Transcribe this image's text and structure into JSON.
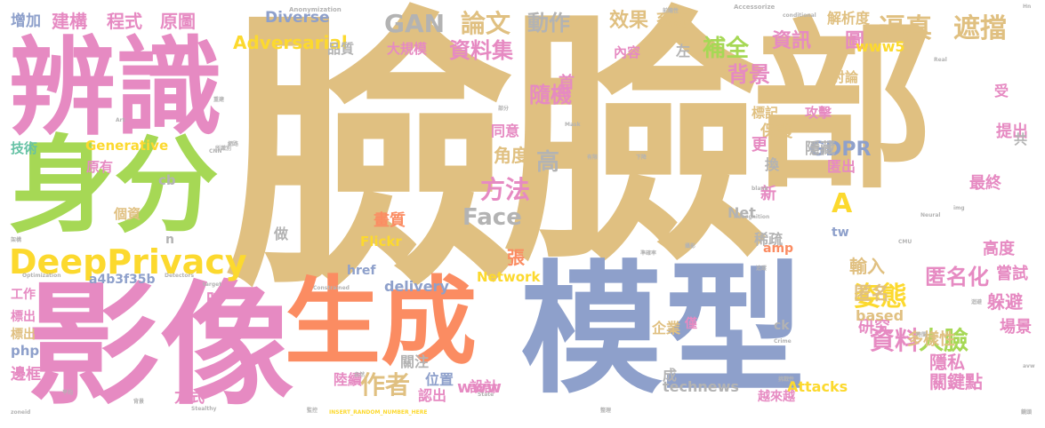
{
  "title": "",
  "colors": {
    "tan": "#e0c081",
    "pink": "#e68ac2",
    "blue": "#8ea0cb",
    "green": "#a6d855",
    "yellow": "#fcd92e",
    "orange": "#fb8c62",
    "teal": "#66c2a5",
    "gray": "#b3b3b3"
  },
  "words": [
    "臉",
    "臉",
    "部",
    "模型",
    "影像",
    "生成",
    "辨識",
    "身分",
    "DeepPrivacy",
    "GAN",
    "論文",
    "動作",
    "效果",
    "系統",
    "解析度",
    "資訊",
    "圖",
    "逼真",
    "遮擋",
    "Adversarial",
    "資料集",
    "補全",
    "背景",
    "隨機",
    "資料",
    "人臉",
    "姿態",
    "方法",
    "作者",
    "匿名化",
    "建構",
    "程式",
    "原圖",
    "增加",
    "Diverse",
    "Face",
    "高",
    "GDPR",
    "Generative",
    "Network",
    "Attacks",
    "technews",
    "www",
    "www5",
    "delivery",
    "php",
    "a4b3f35b",
    "Flickr",
    "關鍵點",
    "多樣性",
    "躲避",
    "隱私",
    "研究",
    "匿名",
    "輸入",
    "稀疏",
    "高度",
    "最終",
    "提出",
    "嘗試",
    "場景",
    "標記",
    "攻擊",
    "保護",
    "隱藏",
    "匿出",
    "新",
    "更",
    "換",
    "角度",
    "同意",
    "內容",
    "左",
    "首",
    "大規模",
    "品質",
    "討論",
    "受",
    "共",
    "技術",
    "原有",
    "cb",
    "個資",
    "n",
    "tw",
    "amp",
    "Net",
    "A",
    "做",
    "張",
    "時",
    "工作",
    "標出",
    "邊框",
    "方式",
    "陸續",
    "關注",
    "位置",
    "設計",
    "認出",
    "成",
    "企業",
    "僅",
    "越來越",
    "based",
    "ck",
    "href",
    "畫質",
    "標出",
    "Anonymization",
    "Accessorize",
    "conditional",
    "blank",
    "Mask",
    "CNN",
    "Art",
    "Optimization",
    "Detectors",
    "target",
    "Constrained",
    "State",
    "zoneid",
    "Stealthy",
    "INSERT_RANDOM_NUMBER_HERE",
    "Crime",
    "CMU",
    "Neural",
    "Recognition",
    "img",
    "Real",
    "Hn",
    "avw",
    "重建",
    "所識別",
    "背景",
    "網路",
    "自然",
    "架構",
    "平均",
    "鏡頭",
    "迴避",
    "時間",
    "整理",
    "監控",
    "準確率",
    "前瞻性",
    "挑戰性",
    "下降",
    "有限",
    "攝影",
    "追蹤",
    "部分",
    "研究團隊",
    "面部",
    "臉型",
    "成功",
    "維持",
    "表現",
    "測試"
  ]
}
